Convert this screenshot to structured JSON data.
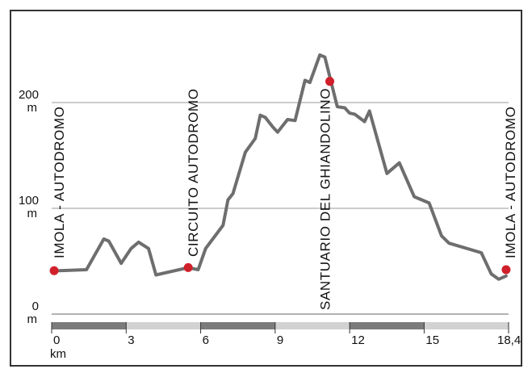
{
  "chart_data": {
    "type": "line",
    "x_unit": "km",
    "y_unit": "m",
    "xlim": [
      0,
      18.4
    ],
    "ylim": [
      0,
      250
    ],
    "x_ticks": [
      {
        "value": 0,
        "label": "0"
      },
      {
        "value": 3,
        "label": "3"
      },
      {
        "value": 6,
        "label": "6"
      },
      {
        "value": 9,
        "label": "9"
      },
      {
        "value": 12,
        "label": "12"
      },
      {
        "value": 15,
        "label": "15"
      },
      {
        "value": 18.4,
        "label": "18,4"
      }
    ],
    "y_ticks": [
      {
        "value": 0,
        "label": "0"
      },
      {
        "value": 100,
        "label": "100"
      },
      {
        "value": 200,
        "label": "200"
      }
    ],
    "grid": true,
    "series": [
      {
        "color": "#6e6e6e",
        "points": [
          [
            0.3,
            41
          ],
          [
            1.4,
            42
          ],
          [
            2.1,
            71
          ],
          [
            2.3,
            69
          ],
          [
            2.8,
            48
          ],
          [
            3.2,
            62
          ],
          [
            3.5,
            68
          ],
          [
            3.9,
            62
          ],
          [
            4.2,
            37
          ],
          [
            5.5,
            44
          ],
          [
            5.9,
            42
          ],
          [
            6.2,
            62
          ],
          [
            6.9,
            84
          ],
          [
            7.1,
            108
          ],
          [
            7.3,
            114
          ],
          [
            7.8,
            153
          ],
          [
            8.2,
            166
          ],
          [
            8.4,
            188
          ],
          [
            8.6,
            186
          ],
          [
            8.9,
            177
          ],
          [
            9.1,
            172
          ],
          [
            9.5,
            184
          ],
          [
            9.8,
            183
          ],
          [
            10.2,
            221
          ],
          [
            10.4,
            219
          ],
          [
            10.8,
            245
          ],
          [
            11.0,
            243
          ],
          [
            11.5,
            196
          ],
          [
            11.8,
            195
          ],
          [
            12.0,
            190
          ],
          [
            12.2,
            189
          ],
          [
            12.6,
            182
          ],
          [
            12.8,
            192
          ],
          [
            13.5,
            133
          ],
          [
            14.0,
            143
          ],
          [
            14.6,
            111
          ],
          [
            15.2,
            105
          ],
          [
            15.7,
            74
          ],
          [
            16.0,
            67
          ],
          [
            17.3,
            58
          ],
          [
            17.7,
            38
          ],
          [
            18.0,
            33
          ],
          [
            18.3,
            36
          ]
        ]
      }
    ],
    "waypoints": [
      {
        "label": "IMOLA - AUTODROMO",
        "x": 0.1,
        "y": 41
      },
      {
        "label": "CIRCUITO AUTODROMO",
        "x": 5.5,
        "y": 44
      },
      {
        "label": "SANTUARIO DEL GHIANDOLINO",
        "x": 11.2,
        "y": 220
      },
      {
        "label": "IMOLA - AUTODROMO",
        "x": 18.3,
        "y": 42
      }
    ],
    "distance_bar": {
      "dark_color": "#7b7b7b",
      "light_color": "#d2d2d2"
    },
    "colors": {
      "line": "#6e6e6e",
      "marker": "#d0202a",
      "grid": "#999999",
      "frame": "#333333"
    }
  }
}
